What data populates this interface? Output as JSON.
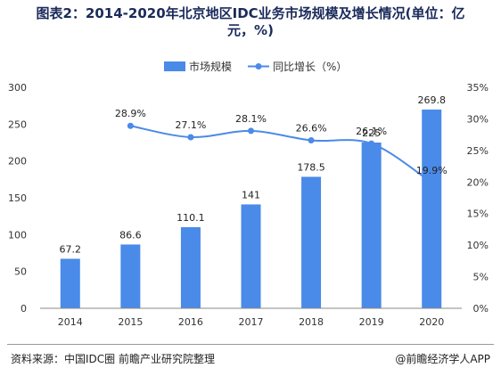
{
  "header": {
    "title_line1": "图表2：2014-2020年北京地区IDC业务市场规模及增长情况(单位：亿",
    "title_line2": "元，%)"
  },
  "footer": {
    "source": "资料来源：中国IDC圈 前瞻产业研究院整理",
    "credit": "@前瞻经济学人APP"
  },
  "colors": {
    "bar": "#4a8ae8",
    "line": "#4a8ae8",
    "title": "#1a2a5a"
  },
  "chart_data": {
    "type": "bar",
    "categories": [
      "2014",
      "2015",
      "2016",
      "2017",
      "2018",
      "2019",
      "2020"
    ],
    "series": [
      {
        "name": "市场规模",
        "type": "bar",
        "axis": "left",
        "values": [
          67.2,
          86.6,
          110.1,
          141,
          178.5,
          225,
          269.8
        ],
        "labels": [
          "67.2",
          "86.6",
          "110.1",
          "141",
          "178.5",
          "225",
          "269.8"
        ]
      },
      {
        "name": "同比增长（%）",
        "type": "line",
        "axis": "right",
        "values": [
          null,
          28.9,
          27.1,
          28.1,
          26.6,
          26.1,
          19.9
        ],
        "labels": [
          "",
          "28.9%",
          "27.1%",
          "28.1%",
          "26.6%",
          "26.1%",
          "19.9%"
        ]
      }
    ],
    "y_left": {
      "range": [
        0,
        300
      ],
      "ticks": [
        "0",
        "50",
        "100",
        "150",
        "200",
        "250",
        "300"
      ]
    },
    "y_right": {
      "range": [
        0,
        35
      ],
      "ticks": [
        "0%",
        "5%",
        "10%",
        "15%",
        "20%",
        "25%",
        "30%",
        "35%"
      ]
    },
    "grid": false,
    "legend_position": "top-center"
  }
}
